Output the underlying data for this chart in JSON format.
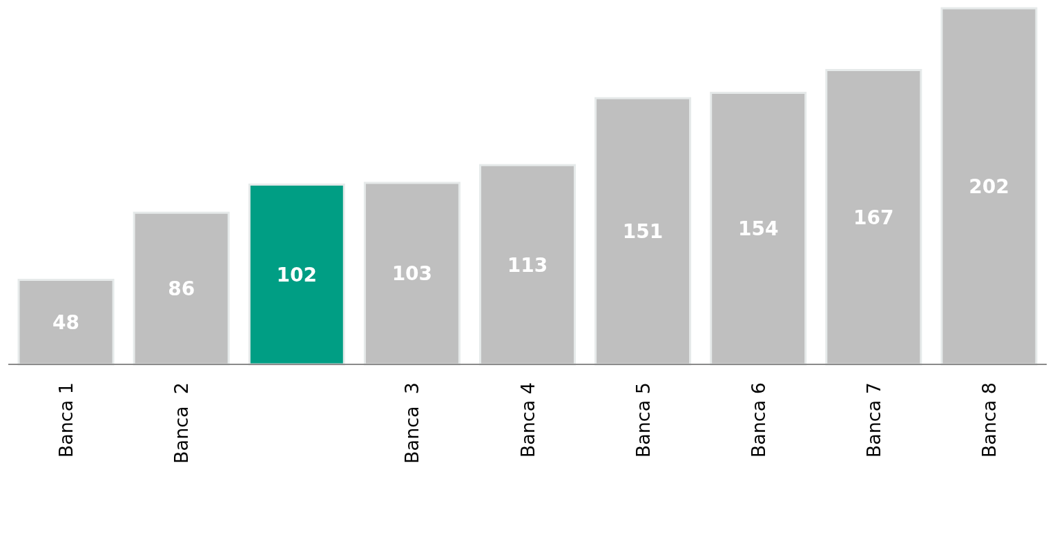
{
  "chart_data": {
    "type": "bar",
    "categories": [
      "Banca 1",
      "Banca  2",
      null,
      "Banca  3",
      "Banca 4",
      "Banca 5",
      "Banca 6",
      "Banca 7",
      "Banca 8"
    ],
    "values": [
      48,
      86,
      102,
      103,
      113,
      151,
      154,
      167,
      202
    ],
    "colors": [
      "#bfbfbf",
      "#bfbfbf",
      "#009e84",
      "#bfbfbf",
      "#bfbfbf",
      "#bfbfbf",
      "#bfbfbf",
      "#bfbfbf",
      "#bfbfbf"
    ],
    "data_labels": true
  }
}
